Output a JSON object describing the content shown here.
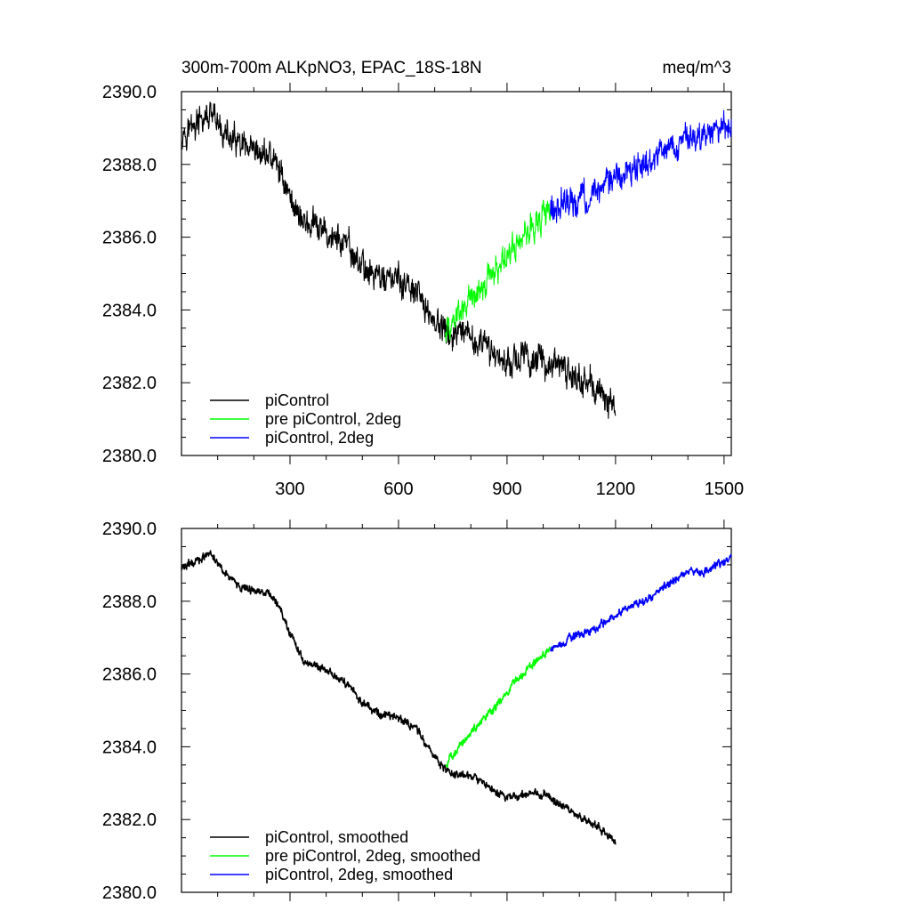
{
  "chart_data": [
    {
      "type": "line",
      "title": "300m-700m ALKpNO3, EPAC_18S-18N",
      "units": "meq/m^3",
      "xlim": [
        0,
        1520
      ],
      "ylim": [
        2380,
        2390
      ],
      "xticks": [
        300,
        600,
        900,
        1200,
        1500
      ],
      "x_tick_labels": [
        "300",
        "600",
        "900",
        "1200",
        "1500"
      ],
      "yticks": [
        2380,
        2382,
        2384,
        2386,
        2388,
        2390
      ],
      "y_tick_labels": [
        "2380.0",
        "2382.0",
        "2384.0",
        "2386.0",
        "2388.0",
        "2390.0"
      ],
      "noise": 0.45,
      "legend_position": "bottom-left",
      "series": [
        {
          "name": "piControl",
          "color": "#000000",
          "x": [
            0,
            40,
            80,
            120,
            160,
            200,
            240,
            270,
            300,
            340,
            400,
            450,
            500,
            550,
            600,
            650,
            700,
            740,
            800,
            850,
            900,
            950,
            1000,
            1050,
            1100,
            1150,
            1200
          ],
          "y": [
            2388.9,
            2389.1,
            2389.3,
            2388.8,
            2388.5,
            2388.2,
            2388.3,
            2387.9,
            2387.1,
            2386.4,
            2386.1,
            2385.8,
            2385.2,
            2384.9,
            2384.8,
            2384.4,
            2383.7,
            2383.3,
            2383.2,
            2382.9,
            2382.6,
            2382.7,
            2382.6,
            2382.4,
            2382.1,
            2381.8,
            2381.3
          ]
        },
        {
          "name": "pre piControl, 2deg",
          "color": "#00ff00",
          "x": [
            730,
            760,
            800,
            850,
            900,
            950,
            1000,
            1020
          ],
          "y": [
            2383.4,
            2383.8,
            2384.3,
            2384.9,
            2385.5,
            2386.1,
            2386.6,
            2386.8
          ]
        },
        {
          "name": "piControl, 2deg",
          "color": "#0000ff",
          "x": [
            1020,
            1080,
            1150,
            1200,
            1250,
            1300,
            1350,
            1400,
            1450,
            1500,
            1520
          ],
          "y": [
            2386.8,
            2387.0,
            2387.3,
            2387.6,
            2387.9,
            2388.1,
            2388.5,
            2388.7,
            2388.8,
            2389.1,
            2389.2
          ]
        }
      ]
    },
    {
      "type": "line",
      "title": "",
      "xlim": [
        0,
        1520
      ],
      "ylim": [
        2380,
        2390
      ],
      "xticks": [
        300,
        600,
        900,
        1200,
        1500
      ],
      "yticks": [
        2380,
        2382,
        2384,
        2386,
        2388,
        2390
      ],
      "y_tick_labels": [
        "2380.0",
        "2382.0",
        "2384.0",
        "2386.0",
        "2388.0",
        "2390.0"
      ],
      "noise": 0.12,
      "legend_position": "bottom-left",
      "series": [
        {
          "name": "piControl, smoothed",
          "color": "#000000",
          "x": [
            0,
            40,
            80,
            120,
            160,
            200,
            240,
            270,
            300,
            340,
            400,
            450,
            500,
            550,
            600,
            650,
            700,
            740,
            800,
            850,
            900,
            950,
            1000,
            1050,
            1100,
            1150,
            1200
          ],
          "y": [
            2388.9,
            2389.1,
            2389.3,
            2388.8,
            2388.4,
            2388.3,
            2388.2,
            2387.9,
            2387.1,
            2386.3,
            2386.1,
            2385.8,
            2385.2,
            2384.9,
            2384.8,
            2384.5,
            2383.7,
            2383.3,
            2383.2,
            2382.9,
            2382.6,
            2382.7,
            2382.7,
            2382.4,
            2382.1,
            2381.8,
            2381.4
          ]
        },
        {
          "name": "pre piControl, 2deg, smoothed",
          "color": "#00ff00",
          "x": [
            730,
            760,
            800,
            850,
            900,
            950,
            1000,
            1020
          ],
          "y": [
            2383.5,
            2383.9,
            2384.4,
            2384.9,
            2385.5,
            2386.1,
            2386.5,
            2386.7
          ]
        },
        {
          "name": "piControl, 2deg, smoothed",
          "color": "#0000ff",
          "x": [
            1020,
            1080,
            1150,
            1200,
            1250,
            1300,
            1350,
            1400,
            1450,
            1500,
            1520
          ],
          "y": [
            2386.7,
            2387.0,
            2387.3,
            2387.6,
            2387.9,
            2388.1,
            2388.5,
            2388.8,
            2388.8,
            2389.1,
            2389.2
          ]
        }
      ]
    }
  ]
}
